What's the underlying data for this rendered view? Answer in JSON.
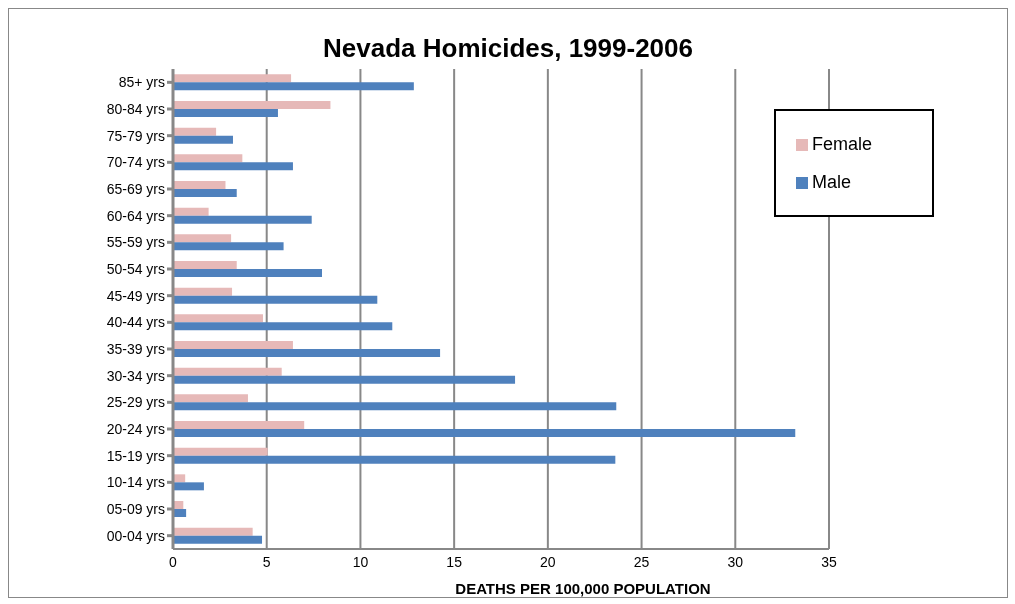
{
  "chart_data": {
    "type": "bar",
    "orientation": "horizontal",
    "title": "Nevada Homicides, 1999-2006",
    "xlabel": "DEATHS PER 100,000 POPULATION",
    "categories": [
      "85+ yrs",
      "80-84 yrs",
      "75-79 yrs",
      "70-74 yrs",
      "65-69 yrs",
      "60-64 yrs",
      "55-59 yrs",
      "50-54 yrs",
      "45-49 yrs",
      "40-44 yrs",
      "35-39 yrs",
      "30-34 yrs",
      "25-29 yrs",
      "20-24 yrs",
      "15-19 yrs",
      "10-14 yrs",
      "05-09 yrs",
      "00-04 yrs"
    ],
    "series": [
      {
        "name": "Female",
        "color": "#e6b9b8",
        "values": [
          6.3,
          8.4,
          2.3,
          3.7,
          2.8,
          1.9,
          3.1,
          3.4,
          3.15,
          4.8,
          6.4,
          5.8,
          4.0,
          7.0,
          5.05,
          0.65,
          0.55,
          4.25
        ]
      },
      {
        "name": "Male",
        "color": "#4f81bd",
        "values": [
          12.85,
          5.6,
          3.2,
          6.4,
          3.4,
          7.4,
          5.9,
          7.95,
          10.9,
          11.7,
          14.25,
          18.25,
          23.65,
          33.2,
          23.6,
          1.65,
          0.7,
          4.75
        ]
      }
    ],
    "xlim": [
      0,
      35
    ],
    "xticks": [
      0,
      5,
      10,
      15,
      20,
      25,
      30,
      35
    ],
    "grid": "x",
    "legend": "top right"
  }
}
